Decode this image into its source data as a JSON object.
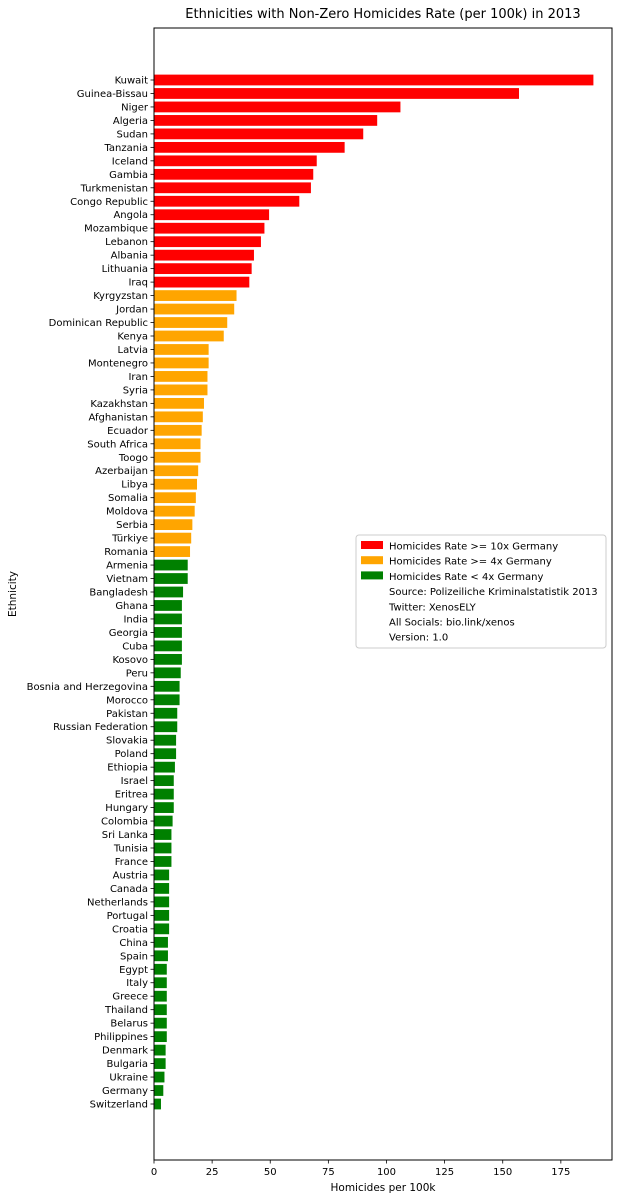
{
  "chart_data": {
    "type": "bar",
    "orientation": "horizontal",
    "title": "Ethnicities with Non-Zero Homicides Rate (per 100k) in 2013",
    "xlabel": "Homicides per 100k",
    "ylabel": "Ethnicity",
    "xlim": [
      0,
      197
    ],
    "xticks": [
      0,
      25,
      50,
      75,
      100,
      125,
      150,
      175
    ],
    "grid": false,
    "legend_position": "center-right",
    "categories": [
      "Kuwait",
      "Guinea-Bissau",
      "Niger",
      "Algeria",
      "Sudan",
      "Tanzania",
      "Iceland",
      "Gambia",
      "Turkmenistan",
      "Congo Republic",
      "Angola",
      "Mozambique",
      "Lebanon",
      "Albania",
      "Lithuania",
      "Iraq",
      "Kyrgyzstan",
      "Jordan",
      "Dominican Republic",
      "Kenya",
      "Latvia",
      "Montenegro",
      "Iran",
      "Syria",
      "Kazakhstan",
      "Afghanistan",
      "Ecuador",
      "South Africa",
      "Toogo",
      "Azerbaijan",
      "Libya",
      "Somalia",
      "Moldova",
      "Serbia",
      "Türkiye",
      "Romania",
      "Armenia",
      "Vietnam",
      "Bangladesh",
      "Ghana",
      "India",
      "Georgia",
      "Cuba",
      "Kosovo",
      "Peru",
      "Bosnia and Herzegovina",
      "Morocco",
      "Pakistan",
      "Russian Federation",
      "Slovakia",
      "Poland",
      "Ethiopia",
      "Israel",
      "Eritrea",
      "Hungary",
      "Colombia",
      "Sri Lanka",
      "Tunisia",
      "France",
      "Austria",
      "Canada",
      "Netherlands",
      "Portugal",
      "Croatia",
      "China",
      "Spain",
      "Egypt",
      "Italy",
      "Greece",
      "Thailand",
      "Belarus",
      "Philippines",
      "Denmark",
      "Bulgaria",
      "Ukraine",
      "Germany",
      "Switzerland"
    ],
    "values": [
      189,
      157,
      106,
      96,
      90,
      82,
      70,
      68.5,
      67.5,
      62.5,
      49.5,
      47.5,
      46,
      43,
      42,
      41,
      35.5,
      34.5,
      31.5,
      30,
      23.5,
      23.5,
      23,
      23,
      21.5,
      21,
      20.5,
      20,
      20,
      19,
      18.5,
      18,
      17.5,
      16.5,
      16,
      15.5,
      14.5,
      14.5,
      12.5,
      12,
      12,
      12,
      12,
      12,
      11.5,
      11,
      11,
      10,
      10,
      9.5,
      9.5,
      9,
      8.5,
      8.5,
      8.5,
      8,
      7.5,
      7.5,
      7.5,
      6.5,
      6.5,
      6.5,
      6.5,
      6.5,
      6,
      6,
      5.5,
      5.5,
      5.5,
      5.5,
      5.5,
      5.5,
      5,
      5,
      4.5,
      4,
      3
    ],
    "groups": [
      "high",
      "high",
      "high",
      "high",
      "high",
      "high",
      "high",
      "high",
      "high",
      "high",
      "high",
      "high",
      "high",
      "high",
      "high",
      "high",
      "medium",
      "medium",
      "medium",
      "medium",
      "medium",
      "medium",
      "medium",
      "medium",
      "medium",
      "medium",
      "medium",
      "medium",
      "medium",
      "medium",
      "medium",
      "medium",
      "medium",
      "medium",
      "medium",
      "medium",
      "low",
      "low",
      "low",
      "low",
      "low",
      "low",
      "low",
      "low",
      "low",
      "low",
      "low",
      "low",
      "low",
      "low",
      "low",
      "low",
      "low",
      "low",
      "low",
      "low",
      "low",
      "low",
      "low",
      "low",
      "low",
      "low",
      "low",
      "low",
      "low",
      "low",
      "low",
      "low",
      "low",
      "low",
      "low",
      "low",
      "low",
      "low",
      "low",
      "low",
      "low"
    ],
    "colors": {
      "high": "#ff0000",
      "medium": "#ffa500",
      "low": "#008000"
    },
    "legend": [
      {
        "label": "Homicides Rate >= 10x Germany",
        "color": "#ff0000"
      },
      {
        "label": "Homicides Rate >= 4x Germany",
        "color": "#ffa500"
      },
      {
        "label": "Homicides Rate < 4x Germany",
        "color": "#008000"
      },
      {
        "label": "Source: Polizeiliche Kriminalstatistik 2013",
        "color": ""
      },
      {
        "label": "Twitter: XenosELY",
        "color": ""
      },
      {
        "label": "All Socials: bio.link/xenos",
        "color": ""
      },
      {
        "label": "Version: 1.0",
        "color": ""
      }
    ]
  }
}
